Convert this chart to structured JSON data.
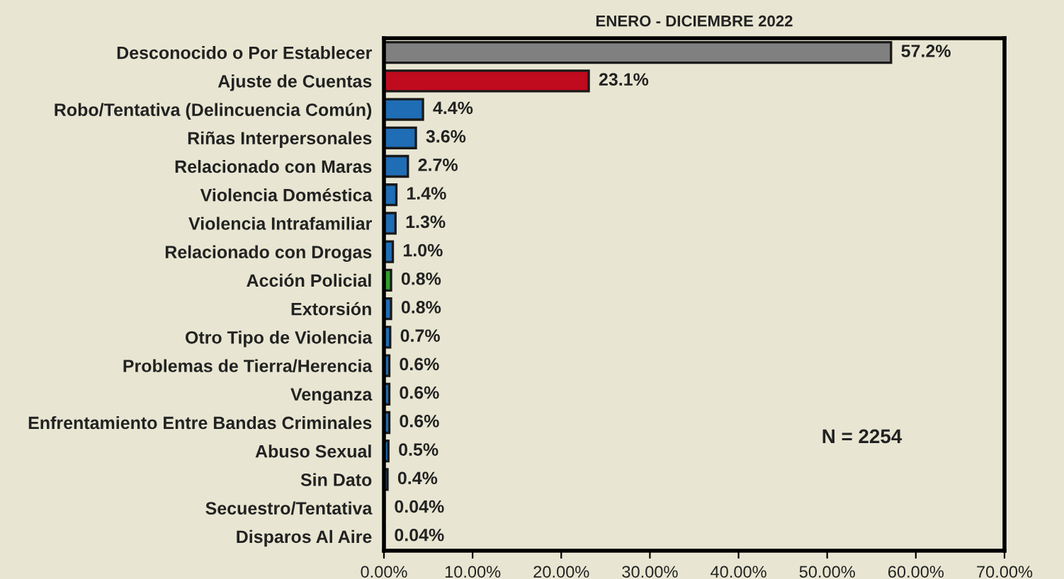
{
  "chart_data": {
    "type": "bar",
    "orientation": "horizontal",
    "title": "ENERO - DICIEMBRE 2022",
    "categories": [
      "Desconocido o Por Establecer",
      "Ajuste de Cuentas",
      "Robo/Tentativa (Delincuencia Común)",
      "Riñas Interpersonales",
      "Relacionado con Maras",
      "Violencia Doméstica",
      "Violencia Intrafamiliar",
      "Relacionado con Drogas",
      "Acción Policial",
      "Extorsión",
      "Otro Tipo de Violencia",
      "Problemas de Tierra/Herencia",
      "Venganza",
      "Enfrentamiento Entre Bandas Criminales",
      "Abuso Sexual",
      "Sin Dato",
      "Secuestro/Tentativa",
      "Disparos Al Aire"
    ],
    "values": [
      57.2,
      23.1,
      4.4,
      3.6,
      2.7,
      1.4,
      1.3,
      1.0,
      0.8,
      0.8,
      0.7,
      0.6,
      0.6,
      0.6,
      0.5,
      0.4,
      0.04,
      0.04
    ],
    "colors": [
      "#808080",
      "#c00a1e",
      "#1f6db5",
      "#1f6db5",
      "#1f6db5",
      "#1f6db5",
      "#1f6db5",
      "#1f6db5",
      "#2ca02c",
      "#1f6db5",
      "#1f6db5",
      "#1f6db5",
      "#1f6db5",
      "#1f6db5",
      "#1f6db5",
      "#1f6db5",
      "#1f6db5",
      "#1f6db5"
    ],
    "value_labels": [
      "57.2%",
      "23.1%",
      "4.4%",
      "3.6%",
      "2.7%",
      "1.4%",
      "1.3%",
      "1.0%",
      "0.8%",
      "0.8%",
      "0.7%",
      "0.6%",
      "0.6%",
      "0.6%",
      "0.5%",
      "0.4%",
      "0.04%",
      "0.04%"
    ],
    "xlim": [
      0,
      70
    ],
    "xticks": [
      {
        "value": 0,
        "label": "0.00%"
      },
      {
        "value": 10,
        "label": "10.00%"
      },
      {
        "value": 20,
        "label": "20.00%"
      },
      {
        "value": 30,
        "label": "30.00%"
      },
      {
        "value": 40,
        "label": "40.00%"
      },
      {
        "value": 50,
        "label": "50.00%"
      },
      {
        "value": 60,
        "label": "60.00%"
      },
      {
        "value": 70,
        "label": "70.00%"
      }
    ],
    "annotations": [
      "N = 2254"
    ],
    "grid": false,
    "legend": false
  }
}
